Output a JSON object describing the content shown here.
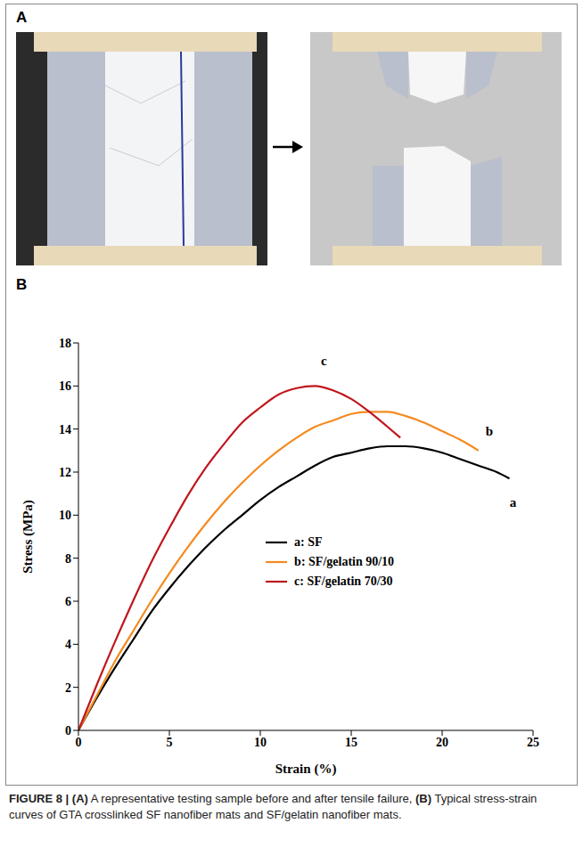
{
  "panel_a": {
    "label": "A"
  },
  "panel_b": {
    "label": "B"
  },
  "chart_data": {
    "type": "line",
    "x_label": "Strain (%)",
    "y_label": "Stress (MPa)",
    "xlim": [
      0,
      25
    ],
    "xticks": [
      0,
      5,
      10,
      15,
      20,
      25
    ],
    "ylim": [
      0,
      18
    ],
    "yticks": [
      0,
      2,
      4,
      6,
      8,
      10,
      12,
      14,
      16,
      18
    ],
    "grid": false,
    "legend": "center",
    "series": [
      {
        "name": "a: SF",
        "color": "#000000",
        "x": [
          0,
          1,
          2,
          3,
          4,
          5,
          6,
          7,
          8,
          9,
          10,
          11,
          12,
          13,
          14,
          15,
          16,
          17,
          18,
          19,
          20,
          21,
          22,
          23,
          23.7
        ],
        "values": [
          0,
          1.5,
          2.9,
          4.2,
          5.5,
          6.6,
          7.6,
          8.5,
          9.3,
          10.0,
          10.7,
          11.3,
          11.8,
          12.3,
          12.7,
          12.9,
          13.1,
          13.2,
          13.2,
          13.1,
          12.9,
          12.6,
          12.3,
          12.0,
          11.7
        ]
      },
      {
        "name": "b: SF/gelatin 90/10",
        "color": "#f58a1f",
        "x": [
          0,
          1,
          2,
          3,
          4,
          5,
          6,
          7,
          8,
          9,
          10,
          11,
          12,
          13,
          14,
          15,
          16,
          17,
          18,
          19,
          20,
          21,
          22
        ],
        "values": [
          0,
          1.6,
          3.2,
          4.6,
          6.0,
          7.3,
          8.5,
          9.6,
          10.6,
          11.5,
          12.3,
          13.0,
          13.6,
          14.1,
          14.4,
          14.7,
          14.8,
          14.8,
          14.6,
          14.3,
          13.9,
          13.5,
          13.0
        ]
      },
      {
        "name": "c: SF/gelatin 70/30",
        "color": "#c0161e",
        "x": [
          0,
          1,
          2,
          3,
          4,
          5,
          6,
          7,
          8,
          9,
          10,
          11,
          12,
          13,
          14,
          15,
          16,
          17,
          17.7
        ],
        "values": [
          0,
          2.1,
          4.1,
          6.0,
          7.8,
          9.4,
          10.9,
          12.2,
          13.3,
          14.3,
          15.0,
          15.6,
          15.9,
          16.0,
          15.8,
          15.4,
          14.8,
          14.1,
          13.6
        ]
      }
    ],
    "annotations": [
      {
        "text": "c",
        "x": 13.5,
        "y": 17.2
      },
      {
        "text": "b",
        "x": 22.6,
        "y": 13.9
      },
      {
        "text": "a",
        "x": 23.9,
        "y": 10.6
      }
    ]
  },
  "caption": [
    {
      "bold": true,
      "text": "FIGURE 8 | (A)"
    },
    {
      "bold": false,
      "text": " A representative testing sample before and after tensile failure, "
    },
    {
      "bold": true,
      "text": "(B)"
    },
    {
      "bold": false,
      "text": " Typical stress-strain curves of GTA crosslinked SF nanofiber mats and SF/gelatin nanofiber mats."
    }
  ]
}
